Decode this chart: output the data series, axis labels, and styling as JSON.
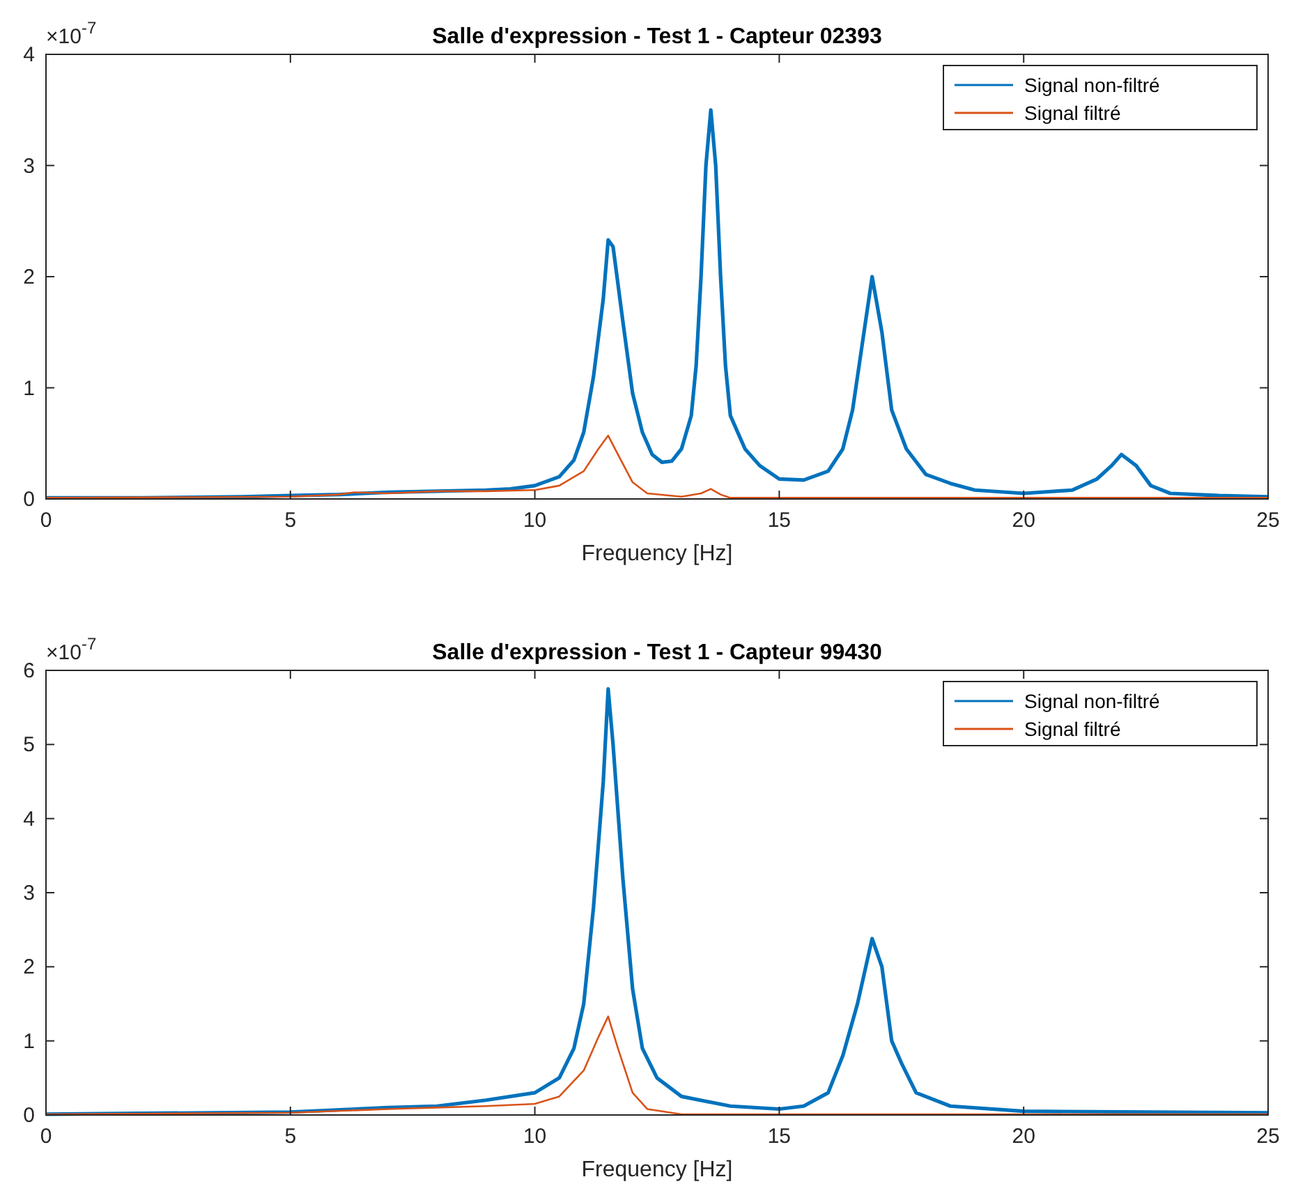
{
  "chart_data": [
    {
      "type": "line",
      "title": "Salle d'expression - Test 1 - Capteur 02393",
      "xlabel": "Frequency [Hz]",
      "annotations": [
        "×10$^{-7}$"
      ],
      "xlim": [
        0,
        25
      ],
      "xticks": [
        0,
        5,
        10,
        15,
        20,
        25
      ],
      "ylim": [
        0,
        4
      ],
      "yticks": [
        0,
        1,
        2,
        3,
        4
      ],
      "legend": "top right",
      "series": [
        {
          "name": "Signal non-filtré",
          "color": "#0072bd",
          "x": [
            0,
            2,
            4,
            5,
            6,
            7,
            8,
            9,
            9.5,
            10,
            10.5,
            10.8,
            11,
            11.2,
            11.4,
            11.5,
            11.6,
            11.8,
            12,
            12.2,
            12.4,
            12.6,
            12.8,
            13,
            13.2,
            13.3,
            13.4,
            13.5,
            13.6,
            13.7,
            13.8,
            13.9,
            14,
            14.3,
            14.6,
            15,
            15.5,
            16,
            16.3,
            16.5,
            16.7,
            16.9,
            17.1,
            17.3,
            17.6,
            18,
            18.5,
            19,
            20,
            21,
            21.5,
            21.8,
            22,
            22.3,
            22.6,
            23,
            24,
            25
          ],
          "values": [
            0.01,
            0.01,
            0.02,
            0.03,
            0.04,
            0.06,
            0.07,
            0.08,
            0.09,
            0.12,
            0.2,
            0.35,
            0.6,
            1.1,
            1.8,
            2.33,
            2.27,
            1.6,
            0.95,
            0.6,
            0.4,
            0.33,
            0.34,
            0.45,
            0.75,
            1.2,
            2,
            3,
            3.5,
            3,
            2,
            1.2,
            0.75,
            0.45,
            0.3,
            0.18,
            0.17,
            0.25,
            0.45,
            0.8,
            1.4,
            2,
            1.5,
            0.8,
            0.45,
            0.22,
            0.14,
            0.08,
            0.05,
            0.08,
            0.18,
            0.3,
            0.4,
            0.3,
            0.12,
            0.05,
            0.03,
            0.02
          ]
        },
        {
          "name": "Signal filtré",
          "color": "#d95319",
          "x": [
            0,
            5,
            6,
            6.3,
            7,
            8,
            9,
            10,
            10.5,
            11,
            11.3,
            11.5,
            11.7,
            12,
            12.3,
            13,
            13.4,
            13.6,
            13.8,
            14,
            15,
            25
          ],
          "values": [
            0.01,
            0.02,
            0.04,
            0.06,
            0.05,
            0.07,
            0.07,
            0.08,
            0.12,
            0.25,
            0.45,
            0.57,
            0.4,
            0.15,
            0.05,
            0.02,
            0.05,
            0.09,
            0.04,
            0.01,
            0.01,
            0.01
          ]
        }
      ]
    },
    {
      "type": "line",
      "title": "Salle d'expression - Test 1 - Capteur 99430",
      "xlabel": "Frequency [Hz]",
      "annotations": [
        "×10$^{-7}$"
      ],
      "xlim": [
        0,
        25
      ],
      "xticks": [
        0,
        5,
        10,
        15,
        20,
        25
      ],
      "ylim": [
        0,
        6
      ],
      "yticks": [
        0,
        1,
        2,
        3,
        4,
        5,
        6
      ],
      "legend": "top right",
      "series": [
        {
          "name": "Signal non-filtré",
          "color": "#0072bd",
          "x": [
            0,
            5,
            7,
            8,
            9,
            10,
            10.5,
            10.8,
            11,
            11.2,
            11.4,
            11.5,
            11.6,
            11.8,
            12,
            12.2,
            12.5,
            13,
            14,
            15,
            15.5,
            16,
            16.3,
            16.6,
            16.9,
            17.1,
            17.3,
            17.5,
            17.8,
            18.5,
            20,
            25
          ],
          "values": [
            0.01,
            0.04,
            0.1,
            0.12,
            0.2,
            0.3,
            0.5,
            0.9,
            1.5,
            2.8,
            4.5,
            5.75,
            5,
            3.2,
            1.7,
            0.9,
            0.5,
            0.25,
            0.12,
            0.08,
            0.12,
            0.3,
            0.8,
            1.5,
            2.38,
            2,
            1,
            0.7,
            0.3,
            0.12,
            0.05,
            0.03
          ]
        },
        {
          "name": "Signal filtré",
          "color": "#d95319",
          "x": [
            0,
            5,
            7,
            8,
            9,
            10,
            10.5,
            11,
            11.3,
            11.5,
            11.7,
            12,
            12.3,
            13,
            25
          ],
          "values": [
            0.01,
            0.03,
            0.08,
            0.1,
            0.12,
            0.15,
            0.25,
            0.6,
            1.05,
            1.33,
            0.9,
            0.3,
            0.08,
            0.01,
            0.01
          ]
        }
      ]
    }
  ]
}
